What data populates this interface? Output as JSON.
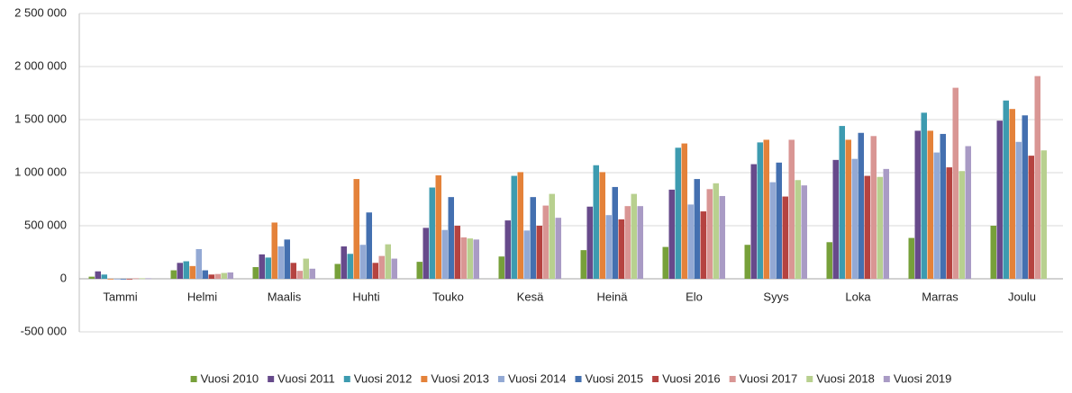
{
  "chart_data": {
    "type": "bar",
    "categories": [
      "Tammi",
      "Helmi",
      "Maalis",
      "Huhti",
      "Touko",
      "Kesä",
      "Heinä",
      "Elo",
      "Syys",
      "Loka",
      "Marras",
      "Joulu"
    ],
    "series": [
      {
        "name": "Vuosi 2010",
        "color": "#77a03a",
        "values": [
          20000,
          80000,
          110000,
          140000,
          160000,
          210000,
          270000,
          300000,
          320000,
          345000,
          385000,
          500000
        ]
      },
      {
        "name": "Vuosi 2011",
        "color": "#674a8b",
        "values": [
          70000,
          150000,
          230000,
          305000,
          480000,
          550000,
          680000,
          840000,
          1080000,
          1120000,
          1395000,
          1490000
        ]
      },
      {
        "name": "Vuosi 2012",
        "color": "#3d9bb0",
        "values": [
          40000,
          165000,
          200000,
          235000,
          860000,
          970000,
          1070000,
          1235000,
          1285000,
          1440000,
          1565000,
          1680000
        ]
      },
      {
        "name": "Vuosi 2013",
        "color": "#e4823a",
        "values": [
          0,
          120000,
          530000,
          940000,
          975000,
          1005000,
          1005000,
          1275000,
          1310000,
          1310000,
          1395000,
          1600000
        ]
      },
      {
        "name": "Vuosi 2014",
        "color": "#93a9d4",
        "values": [
          0,
          280000,
          305000,
          320000,
          460000,
          455000,
          600000,
          700000,
          910000,
          1130000,
          1190000,
          1290000
        ]
      },
      {
        "name": "Vuosi 2015",
        "color": "#4470b0",
        "values": [
          0,
          80000,
          370000,
          625000,
          770000,
          770000,
          865000,
          940000,
          1095000,
          1375000,
          1365000,
          1540000
        ]
      },
      {
        "name": "Vuosi 2016",
        "color": "#b54340",
        "values": [
          0,
          40000,
          150000,
          150000,
          500000,
          500000,
          560000,
          635000,
          775000,
          970000,
          1050000,
          1160000
        ]
      },
      {
        "name": "Vuosi 2017",
        "color": "#d99694",
        "values": [
          5000,
          45000,
          75000,
          215000,
          390000,
          690000,
          685000,
          845000,
          1310000,
          1345000,
          1800000,
          1910000
        ]
      },
      {
        "name": "Vuosi 2018",
        "color": "#b8d08f",
        "values": [
          5000,
          55000,
          190000,
          325000,
          380000,
          800000,
          800000,
          900000,
          930000,
          960000,
          1015000,
          1210000
        ]
      },
      {
        "name": "Vuosi 2019",
        "color": "#a99bc5",
        "values": [
          5000,
          60000,
          95000,
          190000,
          370000,
          575000,
          685000,
          780000,
          880000,
          1035000,
          1250000,
          null
        ]
      }
    ],
    "ylim": [
      -500000,
      2500000
    ],
    "yticks": [
      {
        "value": -500000,
        "label": "-500 000"
      },
      0,
      {
        "value": 500000,
        "label": "500 000"
      },
      {
        "value": 1000000,
        "label": "1 000 000"
      },
      {
        "value": 1500000,
        "label": "1 500 000"
      },
      {
        "value": 2000000,
        "label": "2 000 000"
      },
      {
        "value": 2500000,
        "label": "2 500 000"
      }
    ],
    "grid": true,
    "legend": "bottom"
  }
}
